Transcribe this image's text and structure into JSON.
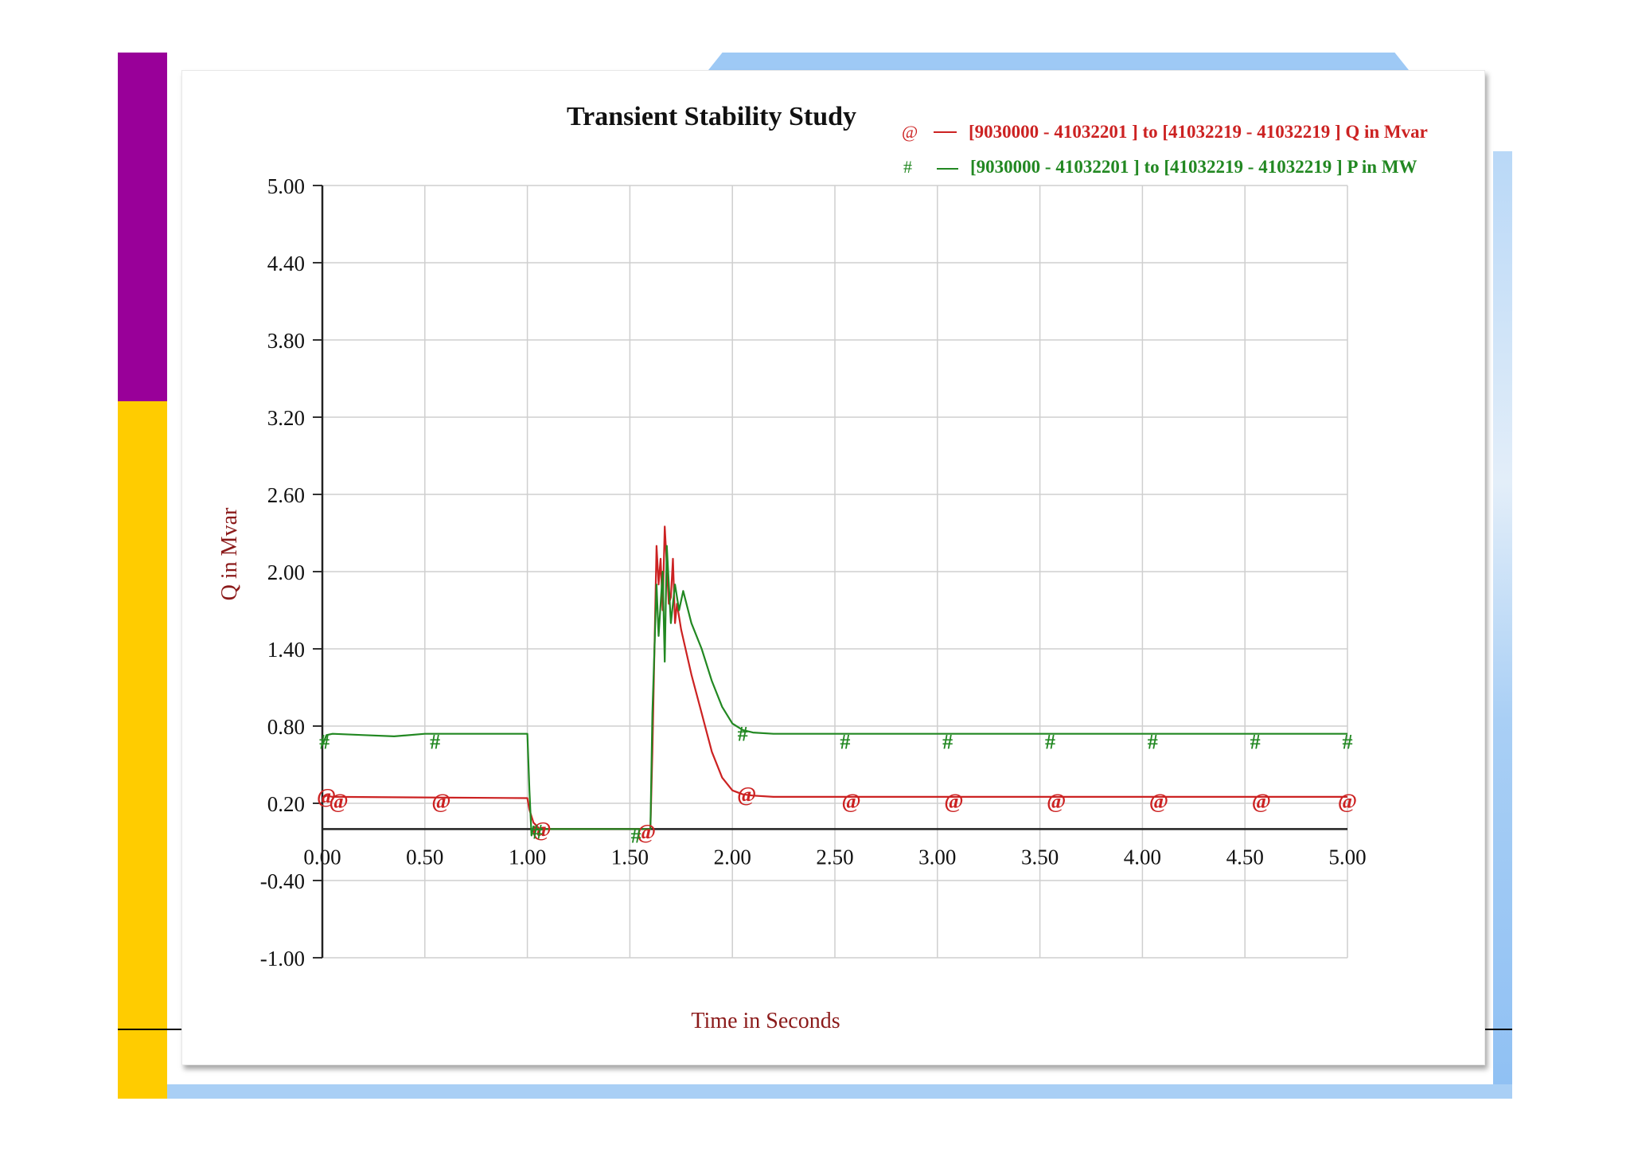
{
  "chart_data": {
    "type": "line",
    "title": "Transient Stability Study",
    "xlabel": "Time in Seconds",
    "ylabel": "Q in Mvar",
    "xlim": [
      0,
      5
    ],
    "ylim": [
      -1.0,
      5.0
    ],
    "x_ticks": [
      "0.00",
      "0.50",
      "1.00",
      "1.50",
      "2.00",
      "2.50",
      "3.00",
      "3.50",
      "4.00",
      "4.50",
      "5.00"
    ],
    "y_ticks": [
      "5.00",
      "4.40",
      "3.80",
      "3.20",
      "2.60",
      "2.00",
      "1.40",
      "0.80",
      "0.20",
      "-0.40",
      "-1.00"
    ],
    "grid": true,
    "legend_position": "top-right",
    "series": [
      {
        "name": "[9030000 - 41032201 ] to [41032219 - 41032219 ] Q in Mvar",
        "marker": "@",
        "color": "#cc2222",
        "x": [
          0,
          0.02,
          0.05,
          1.0,
          1.01,
          1.03,
          1.06,
          1.1,
          1.5,
          1.6,
          1.61,
          1.63,
          1.64,
          1.65,
          1.66,
          1.67,
          1.68,
          1.69,
          1.7,
          1.71,
          1.72,
          1.73,
          1.75,
          1.8,
          1.85,
          1.9,
          1.95,
          2.0,
          2.05,
          2.1,
          2.2,
          5.0
        ],
        "y": [
          0.24,
          0.26,
          0.25,
          0.24,
          0.15,
          0.05,
          0.0,
          0.0,
          0.0,
          0.0,
          0.6,
          2.2,
          1.9,
          2.1,
          1.7,
          2.35,
          2.05,
          1.75,
          1.8,
          2.1,
          1.6,
          1.75,
          1.55,
          1.2,
          0.9,
          0.6,
          0.4,
          0.3,
          0.27,
          0.26,
          0.25,
          0.25
        ],
        "marker_x": [
          0.02,
          0.08,
          0.58,
          1.07,
          1.58,
          2.07,
          2.58,
          3.08,
          3.58,
          4.08,
          4.58,
          5.0
        ],
        "marker_y": [
          0.26,
          0.22,
          0.22,
          0.0,
          -0.02,
          0.27,
          0.22,
          0.22,
          0.22,
          0.22,
          0.22,
          0.22
        ]
      },
      {
        "name": "[9030000 - 41032201 ] to [41032219 - 41032219 ] P in MW",
        "marker": "#",
        "color": "#228822",
        "x": [
          0,
          0.02,
          0.05,
          0.2,
          0.35,
          0.5,
          0.6,
          1.0,
          1.01,
          1.02,
          1.03,
          1.05,
          1.1,
          1.5,
          1.6,
          1.61,
          1.63,
          1.64,
          1.66,
          1.67,
          1.68,
          1.7,
          1.72,
          1.74,
          1.76,
          1.8,
          1.85,
          1.9,
          1.95,
          2.0,
          2.05,
          2.1,
          2.2,
          5.0
        ],
        "y": [
          0.65,
          0.73,
          0.74,
          0.73,
          0.72,
          0.74,
          0.74,
          0.74,
          0.3,
          -0.05,
          0.02,
          0.0,
          0.0,
          0.0,
          0.0,
          0.9,
          1.9,
          1.5,
          2.0,
          1.3,
          2.2,
          1.6,
          1.9,
          1.7,
          1.85,
          1.6,
          1.4,
          1.15,
          0.95,
          0.82,
          0.77,
          0.75,
          0.74,
          0.74
        ],
        "marker_x": [
          0.01,
          0.55,
          1.05,
          1.53,
          2.05,
          2.55,
          3.05,
          3.55,
          4.05,
          4.55,
          5.0
        ],
        "marker_y": [
          0.68,
          0.68,
          -0.02,
          -0.05,
          0.74,
          0.68,
          0.68,
          0.68,
          0.68,
          0.68,
          0.68
        ]
      }
    ]
  }
}
